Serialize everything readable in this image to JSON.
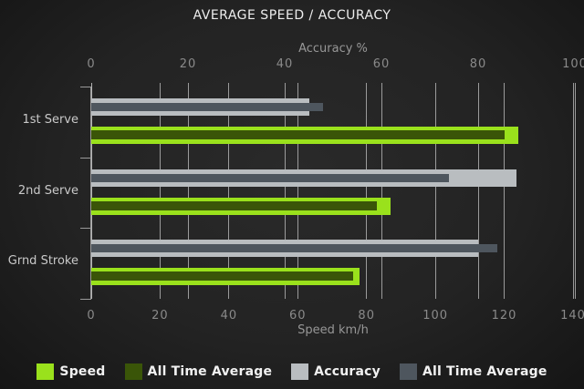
{
  "title": "AVERAGE SPEED / ACCURACY",
  "chart_data": {
    "type": "bar",
    "orientation": "horizontal",
    "grid": true,
    "categories": [
      "1st Serve",
      "2nd Serve",
      "Grnd Stroke"
    ],
    "axes": {
      "top": {
        "label": "Accuracy %",
        "min": 0,
        "max": 100,
        "ticks": [
          0,
          20,
          40,
          60,
          80,
          100
        ]
      },
      "bottom": {
        "label": "Speed km/h",
        "min": 0,
        "max": 140,
        "ticks": [
          0,
          20,
          40,
          60,
          80,
          100,
          120,
          140
        ]
      }
    },
    "series": [
      {
        "name": "Speed",
        "axis": "bottom",
        "role": "outer",
        "color": "#9ae11c",
        "values": [
          124,
          87,
          78
        ]
      },
      {
        "name": "All Time Average",
        "axis": "bottom",
        "role": "overlay",
        "color": "#3a5508",
        "values": [
          120,
          83,
          76
        ]
      },
      {
        "name": "Accuracy",
        "axis": "top",
        "role": "outer",
        "color": "#b9bdc0",
        "values": [
          45,
          88,
          80
        ]
      },
      {
        "name": "All Time Average",
        "axis": "top",
        "role": "overlay",
        "color": "#4e565e",
        "values": [
          48,
          74,
          84
        ]
      }
    ],
    "legend": [
      {
        "label": "Speed",
        "color": "#9ae11c"
      },
      {
        "label": "All Time Average",
        "color": "#3a5508"
      },
      {
        "label": "Accuracy",
        "color": "#b9bdc0"
      },
      {
        "label": "All Time Average",
        "color": "#4e565e"
      }
    ]
  }
}
